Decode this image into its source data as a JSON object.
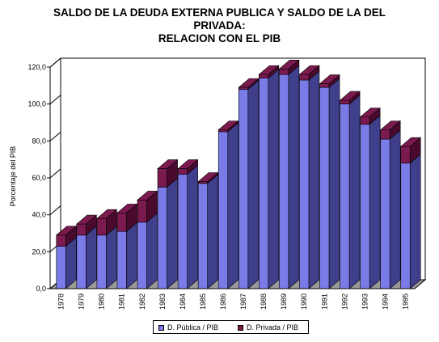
{
  "title_lines": [
    "SALDO DE LA DEUDA EXTERNA PUBLICA Y SALDO DE LA DEL",
    "PRIVADA:",
    "RELACION CON EL PIB"
  ],
  "chart_data": {
    "type": "bar",
    "stacked": true,
    "three_d": true,
    "title": "SALDO DE LA DEUDA EXTERNA PUBLICA Y SALDO DE LA DEL PRIVADA: RELACION CON EL PIB",
    "xlabel": "",
    "ylabel": "Porcentaje del PIB",
    "ylim": [
      0,
      120
    ],
    "yticks": [
      "0,0",
      "20,0",
      "40,0",
      "60,0",
      "80,0",
      "100,0",
      "120,0"
    ],
    "categories": [
      "1978",
      "1979",
      "1980",
      "1981",
      "1982",
      "1983",
      "1984",
      "1985",
      "1986",
      "1987",
      "1988",
      "1989",
      "1990",
      "1991",
      "1992",
      "1993",
      "1994",
      "1995"
    ],
    "series": [
      {
        "name": "D. Pública / PIB",
        "color": "#7B7BE8",
        "side_color": "#3F3F8C",
        "values": [
          23,
          29,
          29,
          31,
          36,
          55,
          62,
          57,
          85,
          108,
          114,
          116,
          113,
          109,
          100,
          89,
          81,
          68
        ]
      },
      {
        "name": "D. Privada / PIB",
        "color": "#7A1A4E",
        "side_color": "#4A0A2E",
        "values": [
          6,
          6,
          9,
          10,
          12,
          10,
          3,
          1,
          1,
          1,
          2,
          3,
          3,
          2,
          2,
          4,
          5,
          9
        ]
      }
    ],
    "grid": false,
    "legend_position": "bottom"
  }
}
